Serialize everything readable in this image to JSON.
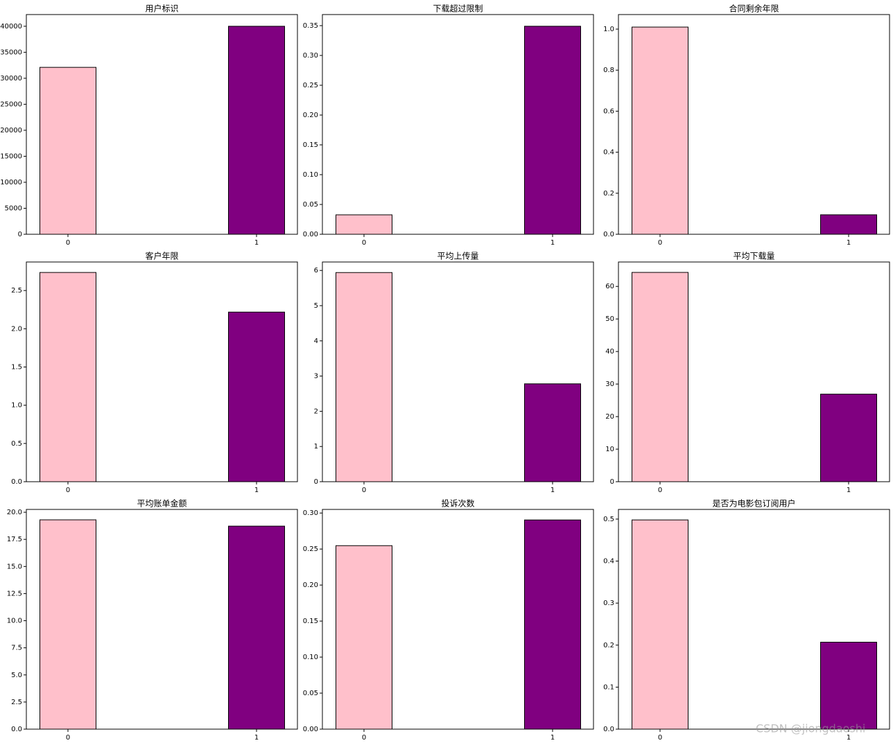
{
  "chart_data": [
    {
      "type": "bar",
      "title": "用户标识",
      "categories": [
        "0",
        "1"
      ],
      "values": [
        32100,
        40000
      ],
      "colors": [
        "#ffc0cb",
        "#800080"
      ],
      "ylim": [
        0,
        42250
      ],
      "yticks": [
        0,
        5000,
        10000,
        15000,
        20000,
        25000,
        30000,
        35000,
        40000
      ]
    },
    {
      "type": "bar",
      "title": "下载超过限制",
      "categories": [
        "0",
        "1"
      ],
      "values": [
        0.0326,
        0.349
      ],
      "colors": [
        "#ffc0cb",
        "#800080"
      ],
      "ylim": [
        0,
        0.3686
      ],
      "yticks": [
        {
          "value": 0,
          "label": "0.00"
        },
        {
          "value": 0.05,
          "label": "0.05"
        },
        {
          "value": 0.1,
          "label": "0.10"
        },
        {
          "value": 0.15,
          "label": "0.15"
        },
        {
          "value": 0.2,
          "label": "0.20"
        },
        {
          "value": 0.25,
          "label": "0.25"
        },
        {
          "value": 0.3,
          "label": "0.30"
        },
        {
          "value": 0.35,
          "label": "0.35"
        }
      ]
    },
    {
      "type": "bar",
      "title": "合同剩余年限",
      "categories": [
        "0",
        "1"
      ],
      "values": [
        1.01,
        0.095
      ],
      "colors": [
        "#ffc0cb",
        "#800080"
      ],
      "ylim": [
        0,
        1.071
      ],
      "yticks": [
        {
          "value": 0,
          "label": "0.0"
        },
        {
          "value": 0.2,
          "label": "0.2"
        },
        {
          "value": 0.4,
          "label": "0.4"
        },
        {
          "value": 0.6,
          "label": "0.6"
        },
        {
          "value": 0.8,
          "label": "0.8"
        },
        {
          "value": 1,
          "label": "1.0"
        }
      ]
    },
    {
      "type": "bar",
      "title": "客户年限",
      "categories": [
        "0",
        "1"
      ],
      "values": [
        2.736,
        2.218
      ],
      "colors": [
        "#ffc0cb",
        "#800080"
      ],
      "ylim": [
        0,
        2.873
      ],
      "yticks": [
        {
          "value": 0,
          "label": "0.0"
        },
        {
          "value": 0.5,
          "label": "0.5"
        },
        {
          "value": 1,
          "label": "1.0"
        },
        {
          "value": 1.5,
          "label": "1.5"
        },
        {
          "value": 2,
          "label": "2.0"
        },
        {
          "value": 2.5,
          "label": "2.5"
        }
      ]
    },
    {
      "type": "bar",
      "title": "平均上传量",
      "categories": [
        "0",
        "1"
      ],
      "values": [
        5.94,
        2.78
      ],
      "colors": [
        "#ffc0cb",
        "#800080"
      ],
      "ylim": [
        0,
        6.24
      ],
      "yticks": [
        0,
        1,
        2,
        3,
        4,
        5,
        6
      ]
    },
    {
      "type": "bar",
      "title": "平均下载量",
      "categories": [
        "0",
        "1"
      ],
      "values": [
        64.3,
        26.9
      ],
      "colors": [
        "#ffc0cb",
        "#800080"
      ],
      "ylim": [
        0,
        67.5
      ],
      "yticks": [
        0,
        10,
        20,
        30,
        40,
        50,
        60
      ]
    },
    {
      "type": "bar",
      "title": "平均账单金额",
      "categories": [
        "0",
        "1"
      ],
      "values": [
        19.3,
        18.72
      ],
      "colors": [
        "#ffc0cb",
        "#800080"
      ],
      "ylim": [
        0,
        20.26
      ],
      "yticks": [
        {
          "value": 0,
          "label": "0.0"
        },
        {
          "value": 2.5,
          "label": "2.5"
        },
        {
          "value": 5,
          "label": "5.0"
        },
        {
          "value": 7.5,
          "label": "7.5"
        },
        {
          "value": 10,
          "label": "10.0"
        },
        {
          "value": 12.5,
          "label": "12.5"
        },
        {
          "value": 15,
          "label": "15.0"
        },
        {
          "value": 17.5,
          "label": "17.5"
        },
        {
          "value": 20,
          "label": "20.0"
        }
      ]
    },
    {
      "type": "bar",
      "title": "投诉次数",
      "categories": [
        "0",
        "1"
      ],
      "values": [
        0.2547,
        0.2904
      ],
      "colors": [
        "#ffc0cb",
        "#800080"
      ],
      "ylim": [
        0,
        0.305
      ],
      "yticks": [
        {
          "value": 0,
          "label": "0.00"
        },
        {
          "value": 0.05,
          "label": "0.05"
        },
        {
          "value": 0.1,
          "label": "0.10"
        },
        {
          "value": 0.15,
          "label": "0.15"
        },
        {
          "value": 0.2,
          "label": "0.20"
        },
        {
          "value": 0.25,
          "label": "0.25"
        },
        {
          "value": 0.3,
          "label": "0.30"
        }
      ]
    },
    {
      "type": "bar",
      "title": "是否为电影包订阅用户",
      "categories": [
        "0",
        "1"
      ],
      "values": [
        0.498,
        0.207
      ],
      "colors": [
        "#ffc0cb",
        "#800080"
      ],
      "ylim": [
        0,
        0.523
      ],
      "yticks": [
        {
          "value": 0,
          "label": "0.0"
        },
        {
          "value": 0.1,
          "label": "0.1"
        },
        {
          "value": 0.2,
          "label": "0.2"
        },
        {
          "value": 0.3,
          "label": "0.3"
        },
        {
          "value": 0.4,
          "label": "0.4"
        },
        {
          "value": 0.5,
          "label": "0.5"
        }
      ]
    }
  ],
  "watermark": "CSDN @jiongdaoshi"
}
